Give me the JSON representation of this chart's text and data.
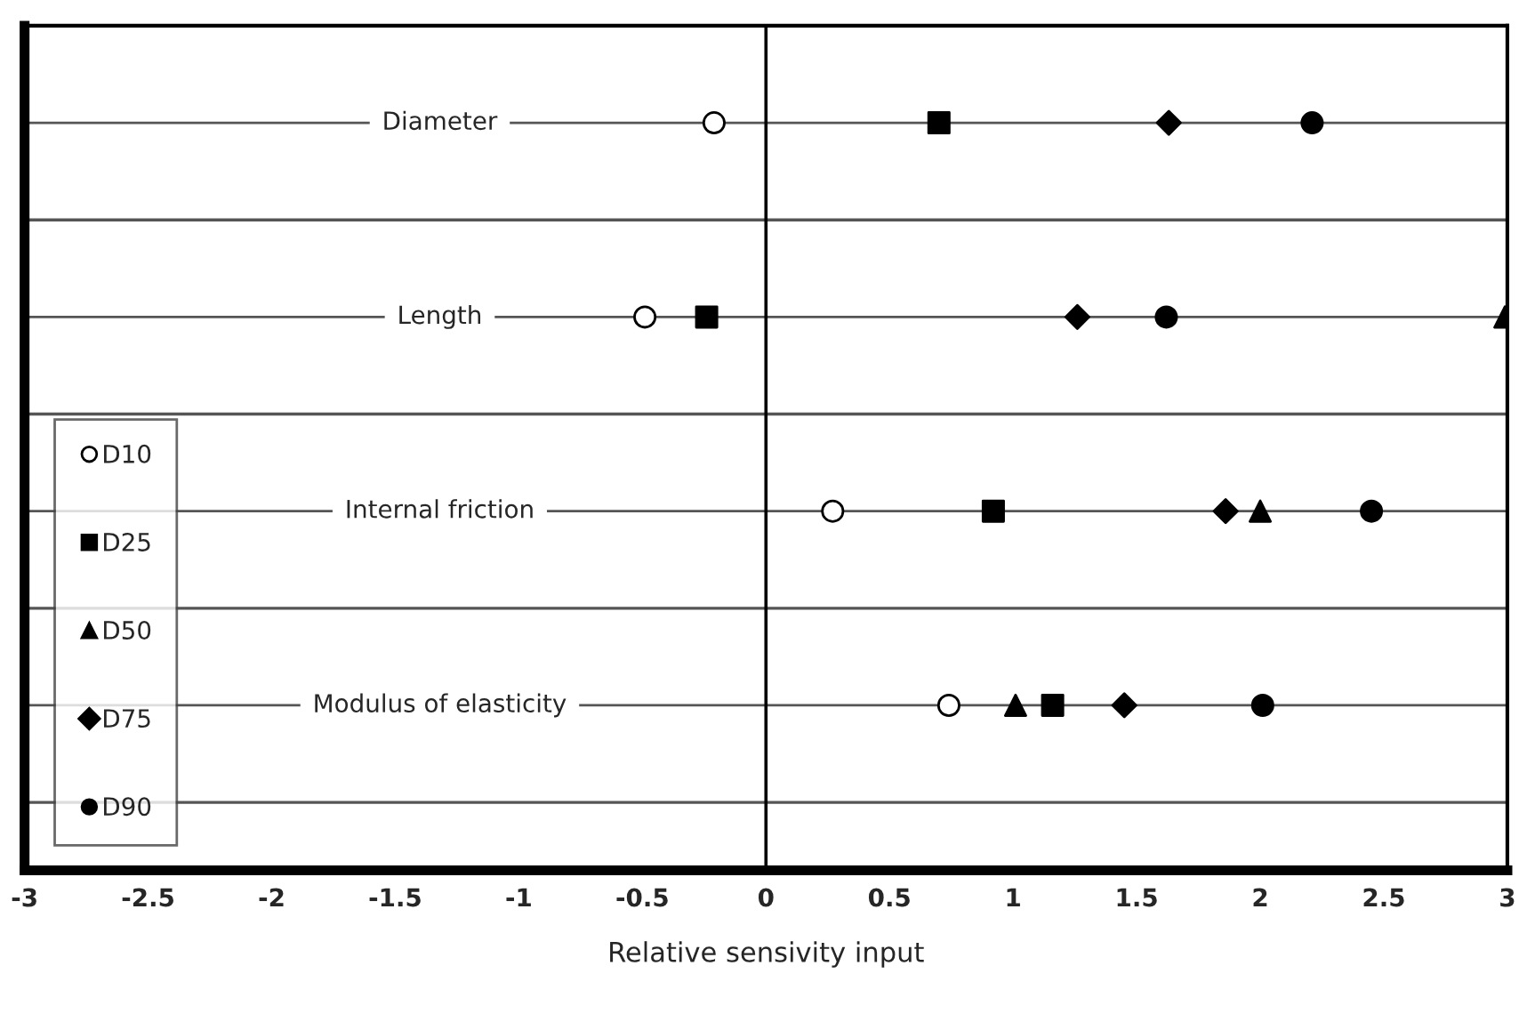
{
  "chart_data": {
    "type": "scatter",
    "orientation": "horizontal",
    "xlabel": "Relative sensivity input",
    "categories": [
      "Diameter",
      "Length",
      "Internal friction",
      "Modulus of elasticity"
    ],
    "series": [
      {
        "name": "D10",
        "color": "#ffffff",
        "marker": "circle",
        "values": [
          -0.21,
          -0.49,
          0.27,
          0.74
        ]
      },
      {
        "name": "D25",
        "color": "#000000",
        "marker": "square",
        "values": [
          0.7,
          -0.24,
          0.92,
          1.16
        ]
      },
      {
        "name": "D50",
        "color": "#000000",
        "marker": "triangle",
        "values": [
          null,
          2.99,
          2.0,
          1.01
        ]
      },
      {
        "name": "D75",
        "color": "#000000",
        "marker": "diamond",
        "values": [
          1.63,
          1.26,
          1.86,
          1.45
        ]
      },
      {
        "name": "D90",
        "color": "#000000",
        "marker": "circle",
        "values": [
          2.21,
          1.62,
          2.45,
          2.01
        ]
      }
    ],
    "xlim": [
      -3,
      3
    ],
    "xticks": [
      -3,
      -2.5,
      -2,
      -1.5,
      -1,
      -0.5,
      0,
      0.5,
      1,
      1.5,
      2,
      2.5,
      3
    ],
    "ref_lines": [
      {
        "axis": "x",
        "value": 0
      }
    ],
    "grid": "y",
    "legend": "bottom left"
  }
}
